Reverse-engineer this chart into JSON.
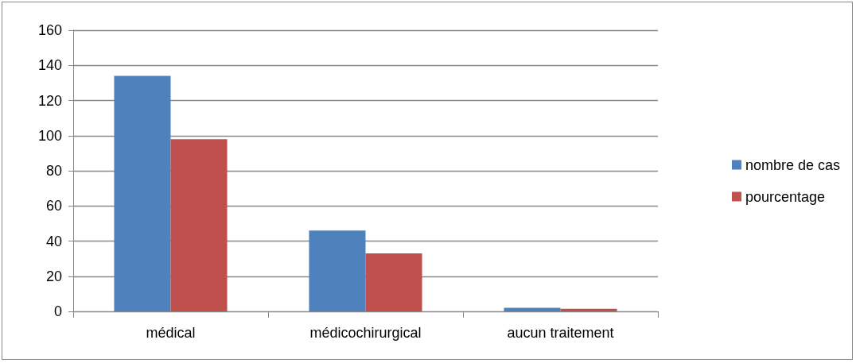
{
  "chart_data": {
    "type": "bar",
    "categories": [
      "médical",
      "médicochirurgical",
      "aucun traitement"
    ],
    "series": [
      {
        "name": "nombre de cas",
        "color": "#4f81bd",
        "values": [
          134,
          46,
          2
        ]
      },
      {
        "name": "pourcentage",
        "color": "#c0504d",
        "values": [
          98,
          33,
          1.5
        ]
      }
    ],
    "ylim": [
      0,
      160
    ],
    "yticks": [
      0,
      20,
      40,
      60,
      80,
      100,
      120,
      140,
      160
    ],
    "grid": "y",
    "legend": "right"
  }
}
